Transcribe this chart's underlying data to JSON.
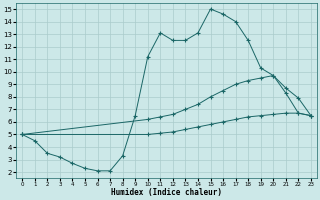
{
  "xlabel": "Humidex (Indice chaleur)",
  "bg_color": "#cce8e8",
  "grid_color": "#aacccc",
  "line_color": "#1a6666",
  "xlim": [
    -0.5,
    23.5
  ],
  "ylim": [
    1.5,
    15.5
  ],
  "xticks": [
    0,
    1,
    2,
    3,
    4,
    5,
    6,
    7,
    8,
    9,
    10,
    11,
    12,
    13,
    14,
    15,
    16,
    17,
    18,
    19,
    20,
    21,
    22,
    23
  ],
  "yticks": [
    2,
    3,
    4,
    5,
    6,
    7,
    8,
    9,
    10,
    11,
    12,
    13,
    14,
    15
  ],
  "line1_x": [
    0,
    1,
    2,
    3,
    4,
    5,
    6,
    7,
    8,
    9,
    10,
    11,
    12,
    13,
    14,
    15,
    16,
    17,
    18,
    19,
    20,
    21,
    22,
    23
  ],
  "line1_y": [
    5,
    4.5,
    3.5,
    3.2,
    2.7,
    2.3,
    2.1,
    2.1,
    3.3,
    6.5,
    11.2,
    13.1,
    12.5,
    12.5,
    13.1,
    15.0,
    14.6,
    14.0,
    12.5,
    10.3,
    9.7,
    8.3,
    6.7,
    6.5
  ],
  "line2_x": [
    0,
    10,
    11,
    12,
    13,
    14,
    15,
    16,
    17,
    18,
    19,
    20,
    21,
    22,
    23
  ],
  "line2_y": [
    5,
    6.2,
    6.4,
    6.6,
    7.0,
    7.4,
    8.0,
    8.5,
    9.0,
    9.3,
    9.5,
    9.7,
    8.7,
    7.9,
    6.5
  ],
  "line3_x": [
    0,
    10,
    11,
    12,
    13,
    14,
    15,
    16,
    17,
    18,
    19,
    20,
    21,
    22,
    23
  ],
  "line3_y": [
    5,
    5.0,
    5.1,
    5.2,
    5.4,
    5.6,
    5.8,
    6.0,
    6.2,
    6.4,
    6.5,
    6.6,
    6.7,
    6.7,
    6.5
  ]
}
